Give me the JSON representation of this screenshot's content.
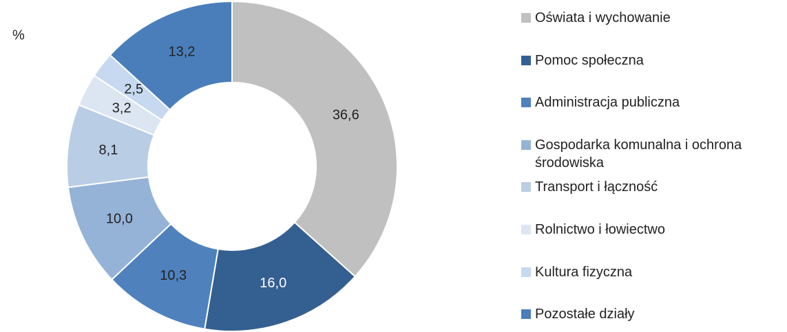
{
  "chart_data": {
    "type": "donut",
    "axis_label": "%",
    "categories": [
      "Oświata i wychowanie",
      "Pomoc społeczna",
      "Administracja publiczna",
      "Gospodarka komunalna i ochrona środowiska",
      "Transport i łączność",
      "Rolnictwo i łowiectwo",
      "Kultura fizyczna",
      "Pozostałe działy"
    ],
    "values": [
      36.6,
      16.0,
      10.3,
      10.0,
      8.1,
      3.2,
      2.5,
      13.2
    ],
    "value_labels": [
      "36,6",
      "16,0",
      "10,3",
      "10,0",
      "8,1",
      "3,2",
      "2,5",
      "13,2"
    ],
    "colors": [
      "#c0c0c0",
      "#345f91",
      "#4f81bd",
      "#95b3d7",
      "#b9cde5",
      "#dce6f2",
      "#c6d9f1",
      "#4a7ebb"
    ],
    "legend": "right"
  }
}
